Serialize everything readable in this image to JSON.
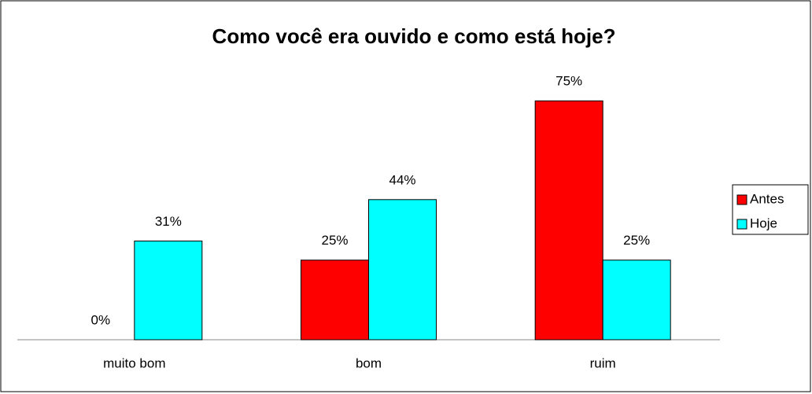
{
  "chart_data": {
    "type": "bar",
    "title": "Como você era ouvido e como está hoje?",
    "categories": [
      "muito bom",
      "bom",
      "ruim"
    ],
    "series": [
      {
        "name": "Antes",
        "color": "#ff0000",
        "values": [
          0,
          25,
          75
        ],
        "value_labels": [
          "0%",
          "25%",
          "75%"
        ]
      },
      {
        "name": "Hoje",
        "color": "#00ffff",
        "values": [
          31,
          44,
          25
        ],
        "value_labels": [
          "31%",
          "44%",
          "25%"
        ]
      }
    ],
    "legend": "right"
  }
}
